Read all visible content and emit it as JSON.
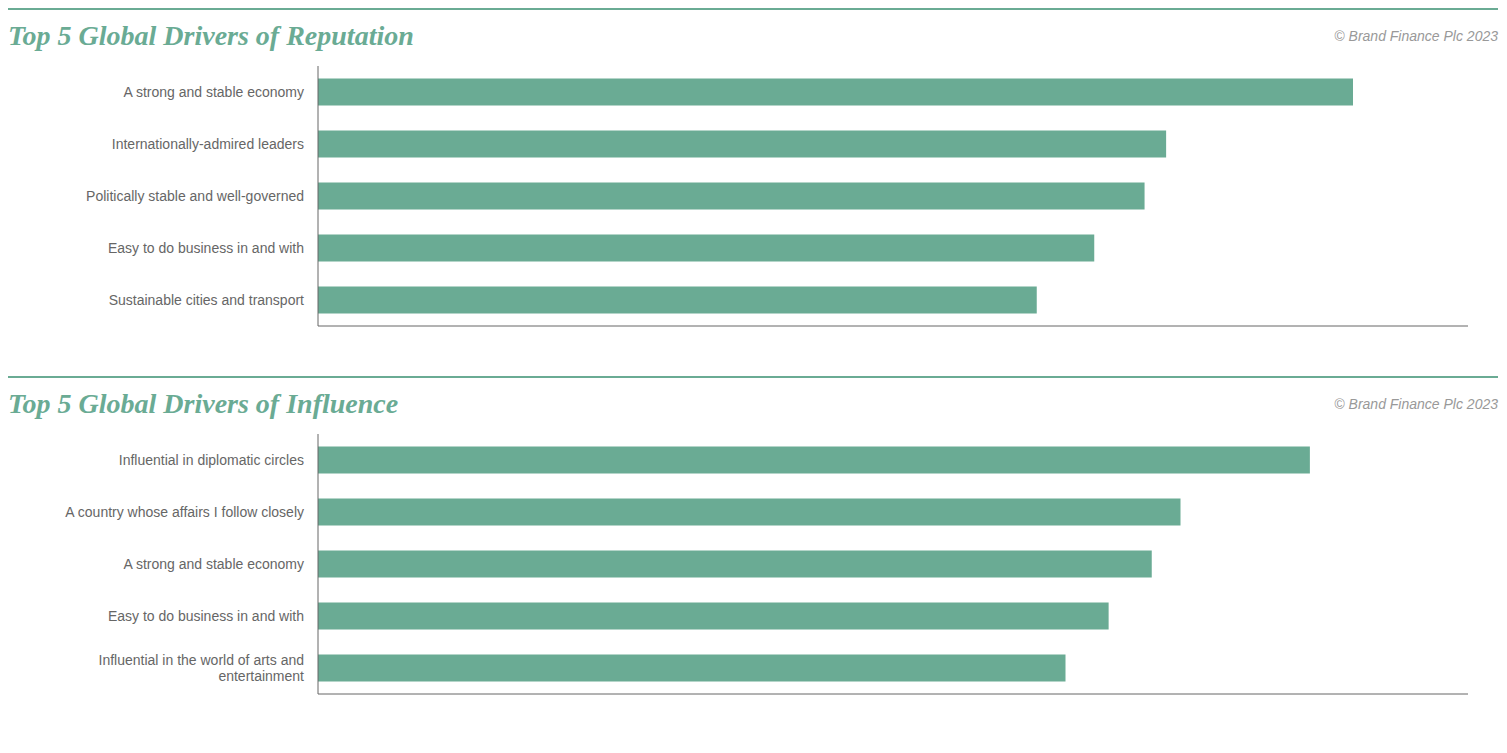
{
  "chart_data": [
    {
      "type": "bar",
      "orientation": "horizontal",
      "title": "Top 5 Global Drivers of Reputation",
      "annotations": [
        "© Brand Finance Plc 2023"
      ],
      "categories": [
        "A strong and stable economy",
        "Internationally-admired leaders",
        "Politically stable and well-governed",
        "Easy to do business in and with",
        "Sustainable cities and transport"
      ],
      "values": [
        72,
        59,
        57.5,
        54,
        50
      ],
      "color": "#6aab94",
      "xlim": [
        0,
        80
      ],
      "grid": false,
      "tick_labels": "y"
    },
    {
      "type": "bar",
      "orientation": "horizontal",
      "title": "Top 5 Global Drivers of Influence",
      "annotations": [
        "© Brand Finance Plc 2023"
      ],
      "categories": [
        "Influential in diplomatic circles",
        "A country whose affairs I follow closely",
        "A strong and stable economy",
        "Easy to do business in and with",
        "Influential in the world of arts and\nentertainment"
      ],
      "values": [
        69,
        60,
        58,
        55,
        52
      ],
      "color": "#6aab94",
      "xlim": [
        0,
        80
      ],
      "grid": false,
      "tick_labels": "y"
    }
  ]
}
